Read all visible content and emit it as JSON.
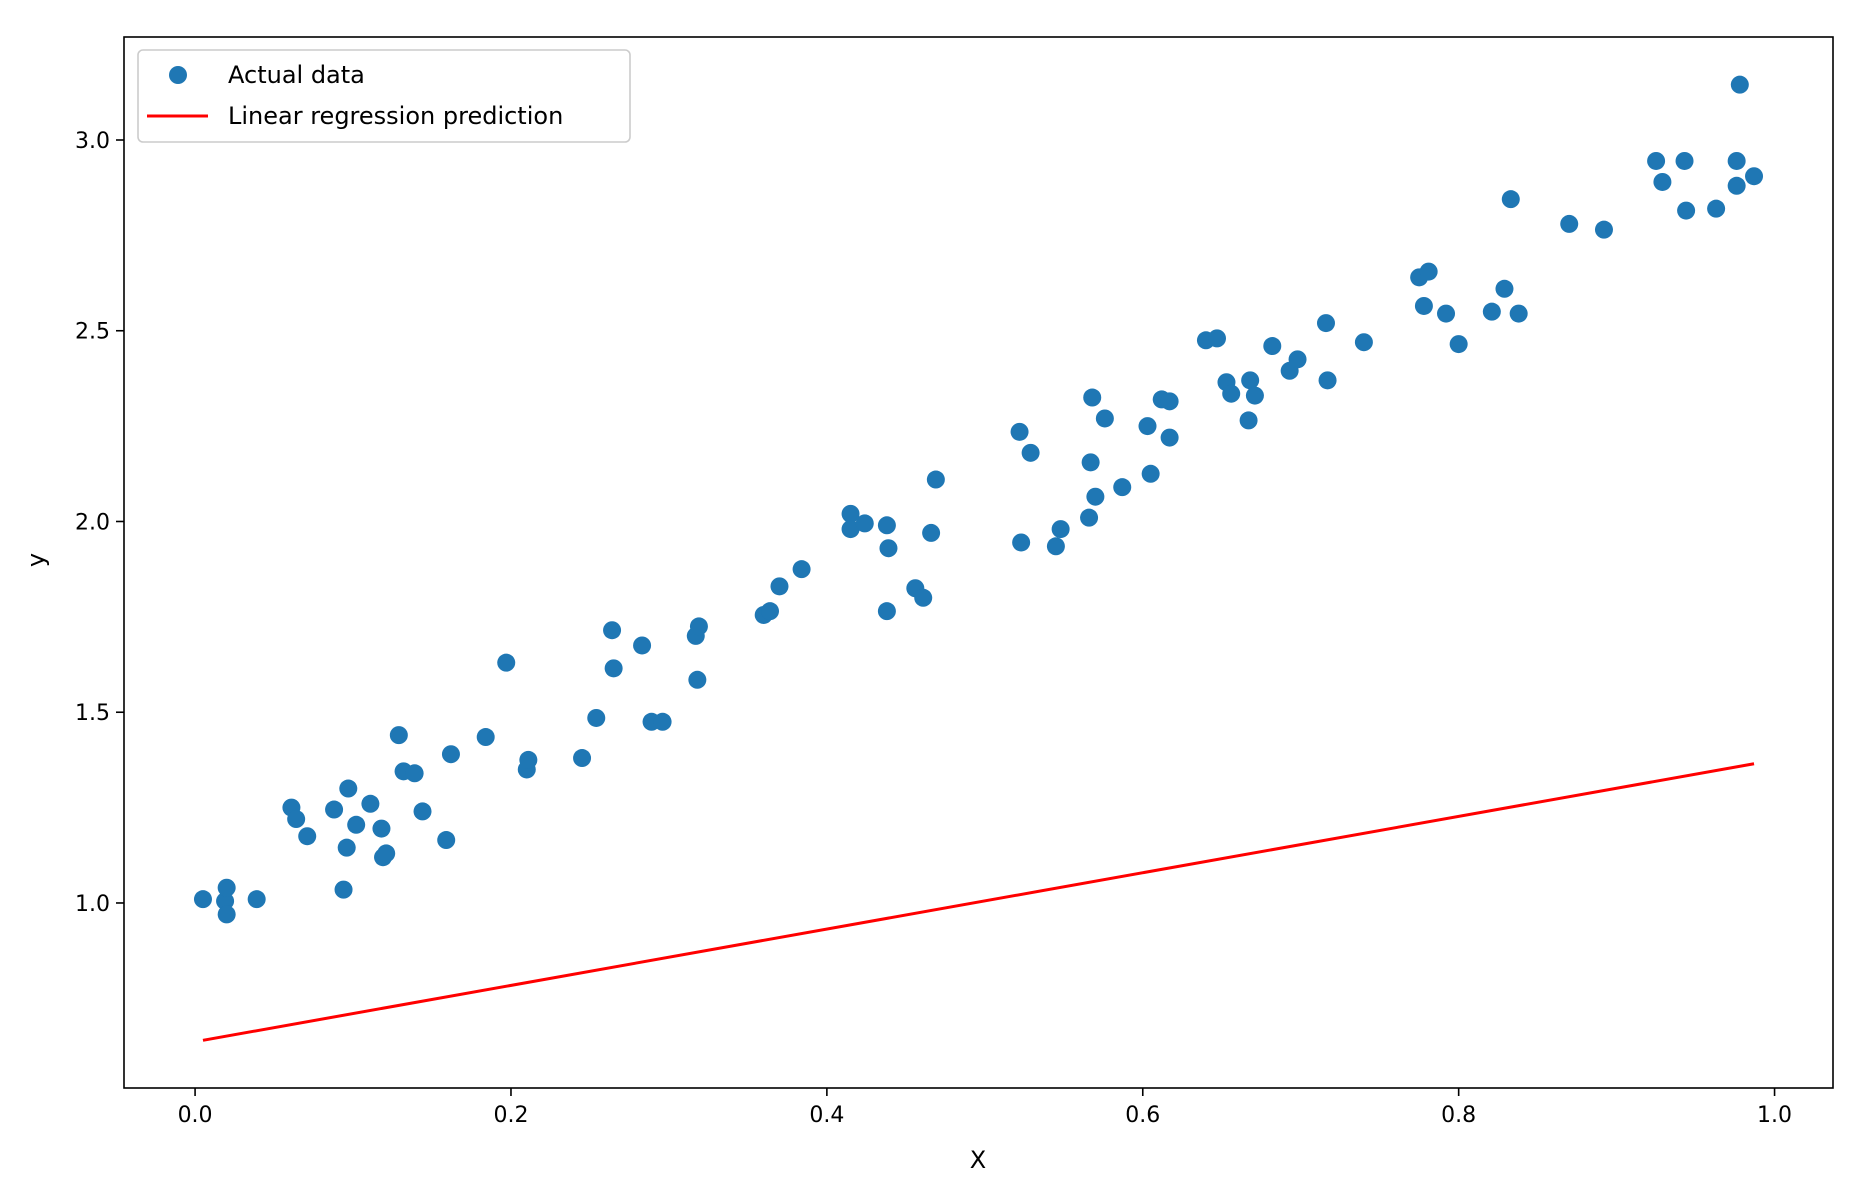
{
  "chart_data": {
    "type": "scatter",
    "title": "",
    "xlabel": "X",
    "ylabel": "y",
    "xlim": [
      -0.045,
      1.037
    ],
    "ylim": [
      0.515,
      3.27
    ],
    "xticks": [
      0.0,
      0.2,
      0.4,
      0.6,
      0.8,
      1.0
    ],
    "xtick_labels": [
      "0.0",
      "0.2",
      "0.4",
      "0.6",
      "0.8",
      "1.0"
    ],
    "yticks": [
      1.0,
      1.5,
      2.0,
      2.5,
      3.0
    ],
    "ytick_labels": [
      "1.0",
      "1.5",
      "2.0",
      "2.5",
      "3.0"
    ],
    "grid": false,
    "legend": {
      "position": "top-left",
      "entries": [
        {
          "label": "Actual data",
          "kind": "marker",
          "color": "#1f77b4"
        },
        {
          "label": "Linear regression prediction",
          "kind": "line",
          "color": "#ff0000"
        }
      ]
    },
    "series": [
      {
        "name": "Actual data",
        "kind": "scatter",
        "color": "#1f77b4",
        "points": [
          [
            0.005,
            1.01
          ],
          [
            0.019,
            1.005
          ],
          [
            0.02,
            0.97
          ],
          [
            0.02,
            1.04
          ],
          [
            0.039,
            1.01
          ],
          [
            0.061,
            1.25
          ],
          [
            0.064,
            1.22
          ],
          [
            0.071,
            1.175
          ],
          [
            0.088,
            1.245
          ],
          [
            0.094,
            1.035
          ],
          [
            0.096,
            1.145
          ],
          [
            0.097,
            1.3
          ],
          [
            0.102,
            1.205
          ],
          [
            0.111,
            1.26
          ],
          [
            0.118,
            1.195
          ],
          [
            0.119,
            1.12
          ],
          [
            0.121,
            1.13
          ],
          [
            0.129,
            1.44
          ],
          [
            0.132,
            1.345
          ],
          [
            0.139,
            1.34
          ],
          [
            0.144,
            1.24
          ],
          [
            0.159,
            1.165
          ],
          [
            0.162,
            1.39
          ],
          [
            0.184,
            1.435
          ],
          [
            0.197,
            1.63
          ],
          [
            0.21,
            1.35
          ],
          [
            0.211,
            1.375
          ],
          [
            0.245,
            1.38
          ],
          [
            0.254,
            1.485
          ],
          [
            0.264,
            1.715
          ],
          [
            0.265,
            1.615
          ],
          [
            0.283,
            1.675
          ],
          [
            0.289,
            1.475
          ],
          [
            0.296,
            1.475
          ],
          [
            0.317,
            1.7
          ],
          [
            0.318,
            1.585
          ],
          [
            0.319,
            1.725
          ],
          [
            0.36,
            1.755
          ],
          [
            0.364,
            1.765
          ],
          [
            0.37,
            1.83
          ],
          [
            0.384,
            1.875
          ],
          [
            0.415,
            2.02
          ],
          [
            0.415,
            1.98
          ],
          [
            0.424,
            1.995
          ],
          [
            0.438,
            1.765
          ],
          [
            0.438,
            1.99
          ],
          [
            0.439,
            1.93
          ],
          [
            0.456,
            1.825
          ],
          [
            0.461,
            1.8
          ],
          [
            0.466,
            1.97
          ],
          [
            0.469,
            2.11
          ],
          [
            0.522,
            2.235
          ],
          [
            0.523,
            1.945
          ],
          [
            0.529,
            2.18
          ],
          [
            0.545,
            1.935
          ],
          [
            0.548,
            1.98
          ],
          [
            0.566,
            2.01
          ],
          [
            0.567,
            2.155
          ],
          [
            0.568,
            2.325
          ],
          [
            0.57,
            2.065
          ],
          [
            0.576,
            2.27
          ],
          [
            0.587,
            2.09
          ],
          [
            0.603,
            2.25
          ],
          [
            0.605,
            2.125
          ],
          [
            0.612,
            2.32
          ],
          [
            0.617,
            2.315
          ],
          [
            0.617,
            2.22
          ],
          [
            0.64,
            2.475
          ],
          [
            0.647,
            2.48
          ],
          [
            0.653,
            2.365
          ],
          [
            0.656,
            2.335
          ],
          [
            0.667,
            2.265
          ],
          [
            0.668,
            2.37
          ],
          [
            0.671,
            2.33
          ],
          [
            0.682,
            2.46
          ],
          [
            0.693,
            2.395
          ],
          [
            0.698,
            2.425
          ],
          [
            0.716,
            2.52
          ],
          [
            0.717,
            2.37
          ],
          [
            0.74,
            2.47
          ],
          [
            0.775,
            2.64
          ],
          [
            0.778,
            2.565
          ],
          [
            0.781,
            2.655
          ],
          [
            0.792,
            2.545
          ],
          [
            0.8,
            2.465
          ],
          [
            0.821,
            2.55
          ],
          [
            0.829,
            2.61
          ],
          [
            0.833,
            2.845
          ],
          [
            0.838,
            2.545
          ],
          [
            0.87,
            2.78
          ],
          [
            0.892,
            2.765
          ],
          [
            0.925,
            2.945
          ],
          [
            0.929,
            2.89
          ],
          [
            0.943,
            2.945
          ],
          [
            0.944,
            2.815
          ],
          [
            0.963,
            2.82
          ],
          [
            0.976,
            2.88
          ],
          [
            0.976,
            2.945
          ],
          [
            0.978,
            3.145
          ],
          [
            0.987,
            2.905
          ]
        ]
      },
      {
        "name": "Linear regression prediction",
        "kind": "line",
        "color": "#ff0000",
        "points": [
          [
            0.005,
            0.64
          ],
          [
            0.987,
            1.365
          ]
        ]
      }
    ]
  }
}
